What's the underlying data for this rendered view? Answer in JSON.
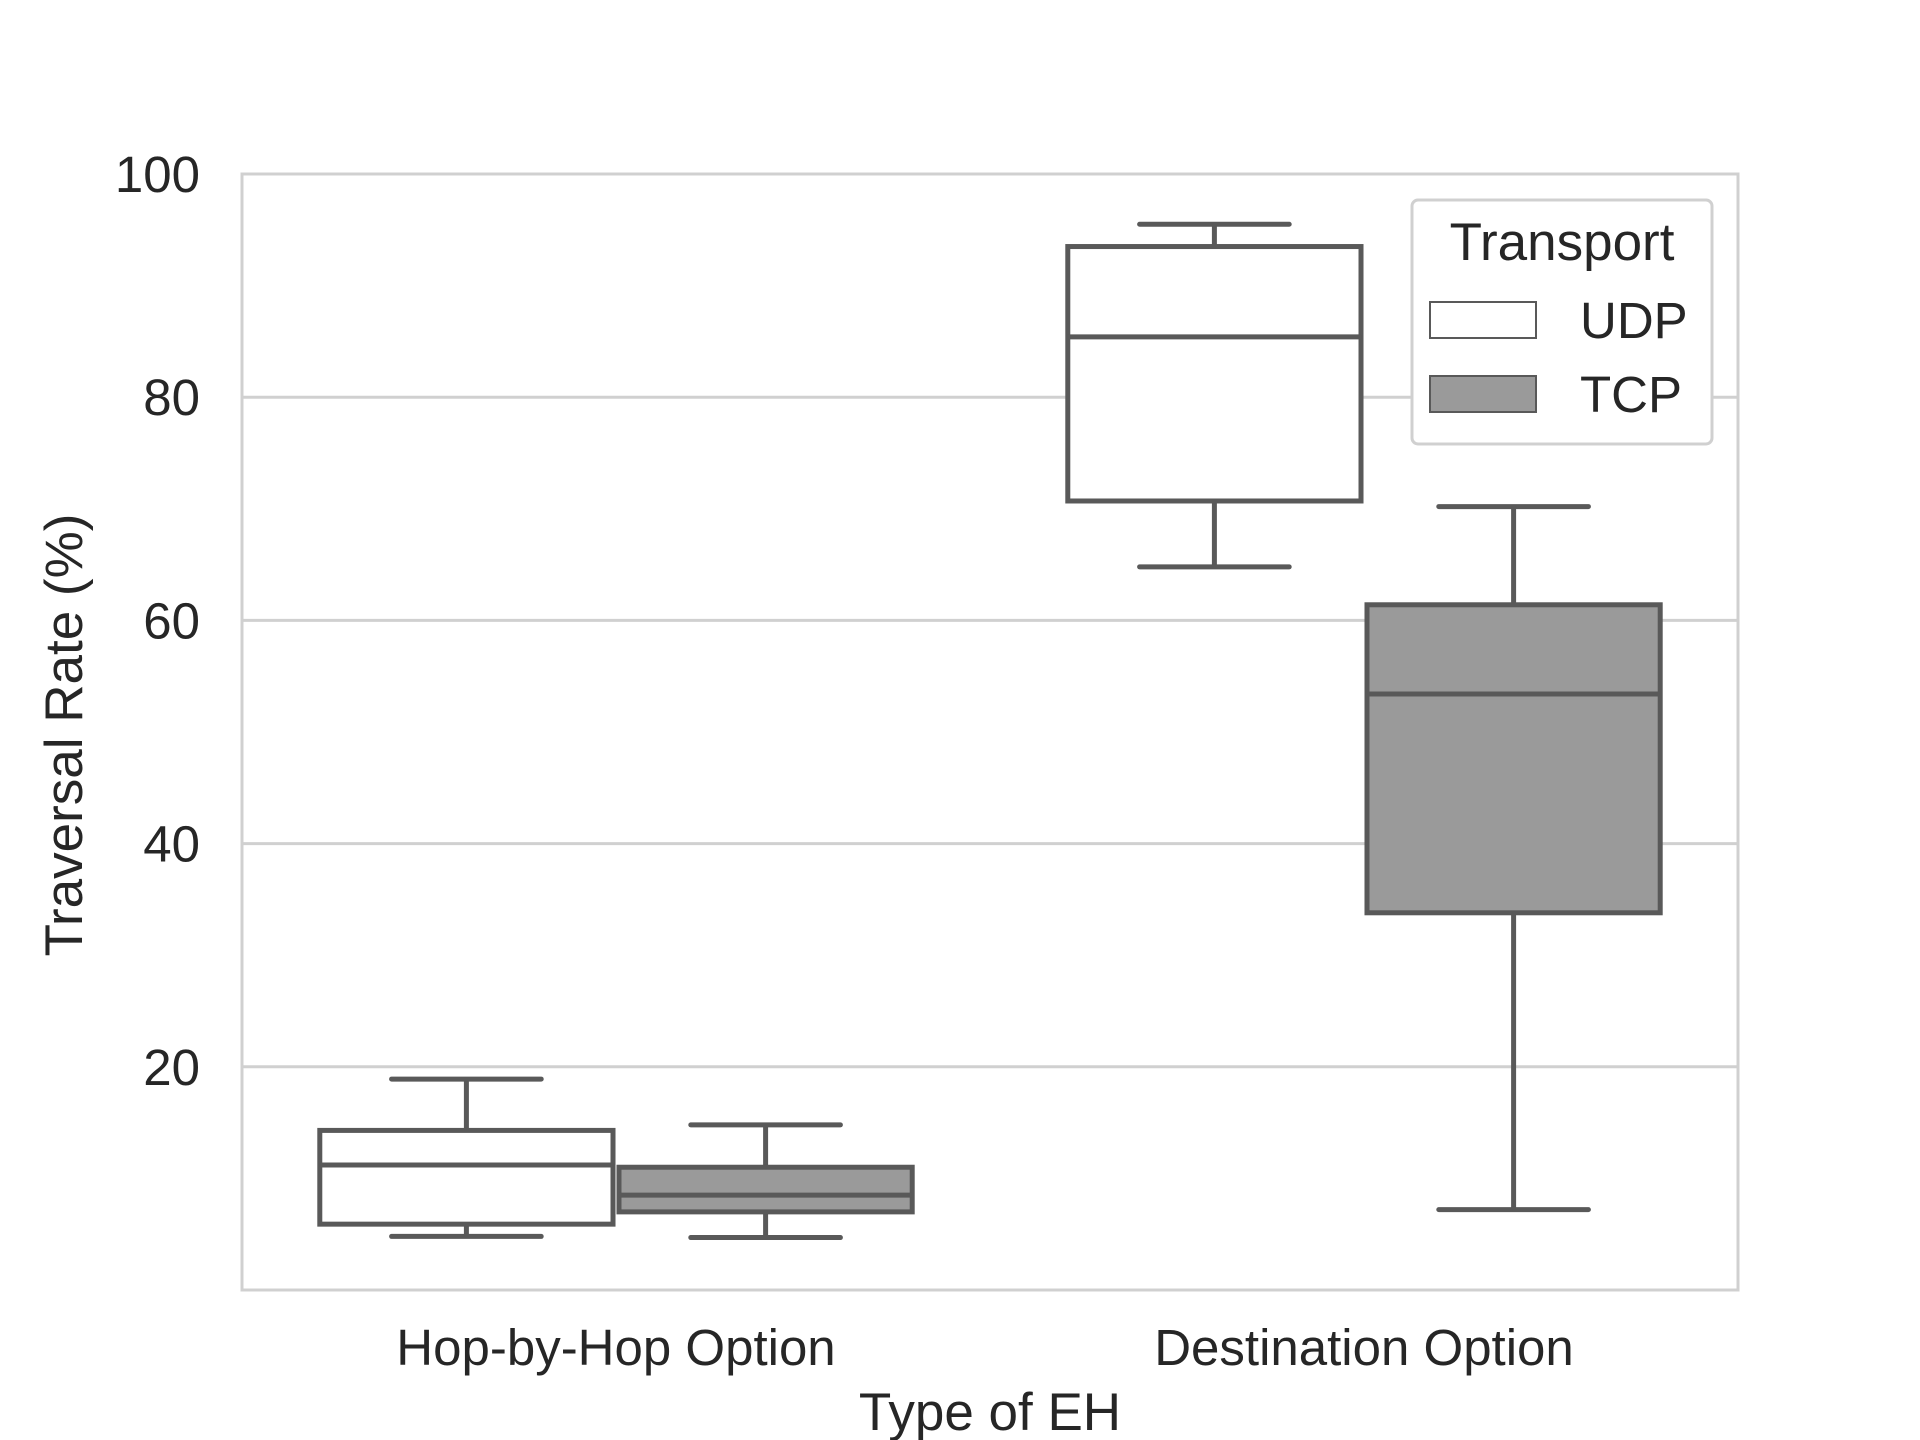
{
  "chart_data": {
    "type": "box",
    "title": "",
    "xlabel": "Type of EH",
    "ylabel": "Traversal Rate (%)",
    "ylim": [
      0,
      100
    ],
    "yticks": [
      20,
      40,
      60,
      80,
      100
    ],
    "grid": true,
    "categories": [
      "Hop-by-Hop Option",
      "Destination Option"
    ],
    "legend": {
      "title": "Transport",
      "position": "top-right"
    },
    "colors": {
      "UDP": "#ffffff",
      "TCP": "#9a9a9a",
      "stroke": "#595959",
      "grid": "#d0d0d0",
      "frame": "#d0d0d0"
    },
    "series": [
      {
        "name": "UDP",
        "boxes": [
          {
            "whisker_low": 4.8,
            "q1": 5.9,
            "median": 11.2,
            "q3": 14.3,
            "whisker_high": 18.9
          },
          {
            "whisker_low": 64.8,
            "q1": 70.7,
            "median": 85.4,
            "q3": 93.5,
            "whisker_high": 95.5
          }
        ]
      },
      {
        "name": "TCP",
        "boxes": [
          {
            "whisker_low": 4.7,
            "q1": 7.0,
            "median": 8.5,
            "q3": 11.0,
            "whisker_high": 14.8
          },
          {
            "whisker_low": 7.2,
            "q1": 33.8,
            "median": 53.4,
            "q3": 61.4,
            "whisker_high": 70.2
          }
        ]
      }
    ]
  }
}
